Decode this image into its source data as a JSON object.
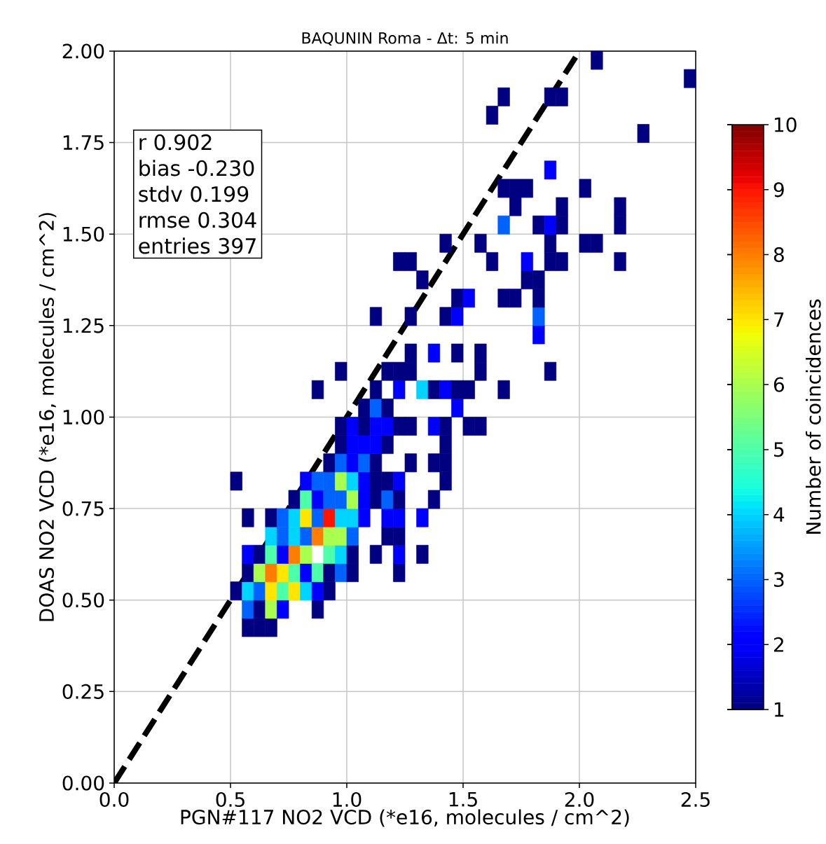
{
  "chart_data": {
    "type": "scatter",
    "title": "BAQUNIN Roma - Δt: 5 min",
    "xlabel": "PGN#117 NO2 VCD (*e16, molecules / cm^2)",
    "ylabel": "DOAS NO2 VCD (*e16, molecules / cm^2)",
    "clabel": "Number of coincidences",
    "annotations": [
      "r 0.902",
      "bias -0.230",
      "stdv 0.199",
      "rmse 0.304",
      "entries 397"
    ],
    "xlim": [
      0,
      2.5
    ],
    "ylim": [
      0,
      2
    ],
    "xticks": [
      {
        "value": 0,
        "label": "0.0"
      },
      0.5,
      {
        "value": 1,
        "label": "1.0"
      },
      1.5,
      {
        "value": 2,
        "label": "2.0"
      },
      2.5
    ],
    "yticks": [
      {
        "value": 0,
        "label": "0.00"
      },
      0.25,
      {
        "value": 0.5,
        "label": "0.50"
      },
      0.75,
      {
        "value": 1,
        "label": "1.00"
      },
      1.25,
      {
        "value": 1.5,
        "label": "1.50"
      },
      1.75,
      {
        "value": 2,
        "label": "2.00"
      }
    ],
    "clim": [
      1,
      10
    ],
    "cticks": [
      1,
      2,
      3,
      4,
      5,
      6,
      7,
      8,
      9,
      10
    ],
    "grid": true,
    "marker": "square",
    "x": [
      0.575,
      0.625,
      0.675,
      0.575,
      0.625,
      0.675,
      0.725,
      0.875,
      0.525,
      0.575,
      0.625,
      0.675,
      0.725,
      0.775,
      0.825,
      0.875,
      0.925,
      0.575,
      0.625,
      0.675,
      0.725,
      0.775,
      0.825,
      0.875,
      0.925,
      0.975,
      1.025,
      1.225,
      0.575,
      0.625,
      0.675,
      0.725,
      0.775,
      0.825,
      0.925,
      0.975,
      1.025,
      1.125,
      1.225,
      1.325,
      0.675,
      0.725,
      0.775,
      0.825,
      0.875,
      0.925,
      0.975,
      1.025,
      1.175,
      1.225,
      0.575,
      0.675,
      0.725,
      0.775,
      0.825,
      0.875,
      0.925,
      0.975,
      1.025,
      1.075,
      1.175,
      1.225,
      1.325,
      0.775,
      0.825,
      0.875,
      0.925,
      0.975,
      1.025,
      1.075,
      1.125,
      1.175,
      1.225,
      1.375,
      0.525,
      0.825,
      0.875,
      0.925,
      0.975,
      1.025,
      1.075,
      1.125,
      1.175,
      1.225,
      1.425,
      0.925,
      0.975,
      1.025,
      1.075,
      1.125,
      1.275,
      1.375,
      1.425,
      0.975,
      1.025,
      1.075,
      1.125,
      1.175,
      1.425,
      0.975,
      1.025,
      1.075,
      1.125,
      1.175,
      1.225,
      1.275,
      1.375,
      1.425,
      1.525,
      1.575,
      1.075,
      1.125,
      1.175,
      1.475,
      0.875,
      1.125,
      1.225,
      1.325,
      1.375,
      1.425,
      1.475,
      1.525,
      1.675,
      0.975,
      1.175,
      1.225,
      1.275,
      1.575,
      1.875,
      1.275,
      1.375,
      1.475,
      1.575,
      1.825,
      1.125,
      1.275,
      1.425,
      1.475,
      1.825,
      1.475,
      1.525,
      1.675,
      1.725,
      1.825,
      1.325,
      1.775,
      1.825,
      1.225,
      1.275,
      1.625,
      1.775,
      1.875,
      1.925,
      2.175,
      1.425,
      1.575,
      1.875,
      2.025,
      2.075,
      1.675,
      1.825,
      1.875,
      1.925,
      2.175,
      1.725,
      1.925,
      2.175,
      1.675,
      1.725,
      1.775,
      2.025,
      1.875,
      2.275,
      1.625,
      1.675,
      1.875,
      1.925,
      2.475,
      2.075
    ],
    "values": [
      0.425,
      0.425,
      0.425,
      0.475,
      0.475,
      0.475,
      0.475,
      0.475,
      0.525,
      0.525,
      0.525,
      0.525,
      0.525,
      0.525,
      0.525,
      0.525,
      0.525,
      0.575,
      0.575,
      0.575,
      0.575,
      0.575,
      0.575,
      0.575,
      0.575,
      0.575,
      0.575,
      0.575,
      0.625,
      0.625,
      0.625,
      0.625,
      0.625,
      0.625,
      0.625,
      0.625,
      0.625,
      0.625,
      0.625,
      0.625,
      0.675,
      0.675,
      0.675,
      0.675,
      0.675,
      0.675,
      0.675,
      0.675,
      0.675,
      0.675,
      0.725,
      0.725,
      0.725,
      0.725,
      0.725,
      0.725,
      0.725,
      0.725,
      0.725,
      0.725,
      0.725,
      0.725,
      0.725,
      0.775,
      0.775,
      0.775,
      0.775,
      0.775,
      0.775,
      0.775,
      0.775,
      0.775,
      0.775,
      0.775,
      0.825,
      0.825,
      0.825,
      0.825,
      0.825,
      0.825,
      0.825,
      0.825,
      0.825,
      0.825,
      0.825,
      0.875,
      0.875,
      0.875,
      0.875,
      0.875,
      0.875,
      0.875,
      0.875,
      0.925,
      0.925,
      0.925,
      0.925,
      0.925,
      0.925,
      0.975,
      0.975,
      0.975,
      0.975,
      0.975,
      0.975,
      0.975,
      0.975,
      0.975,
      0.975,
      0.975,
      1.025,
      1.025,
      1.025,
      1.025,
      1.075,
      1.075,
      1.075,
      1.075,
      1.075,
      1.075,
      1.075,
      1.075,
      1.075,
      1.125,
      1.125,
      1.125,
      1.125,
      1.125,
      1.125,
      1.175,
      1.175,
      1.175,
      1.175,
      1.225,
      1.275,
      1.275,
      1.275,
      1.275,
      1.275,
      1.325,
      1.325,
      1.325,
      1.325,
      1.325,
      1.375,
      1.375,
      1.375,
      1.425,
      1.425,
      1.425,
      1.425,
      1.425,
      1.425,
      1.425,
      1.475,
      1.475,
      1.475,
      1.475,
      1.475,
      1.525,
      1.525,
      1.525,
      1.525,
      1.525,
      1.575,
      1.575,
      1.575,
      1.625,
      1.625,
      1.625,
      1.625,
      1.675,
      1.775,
      1.825,
      1.875,
      1.875,
      1.875,
      1.925,
      1.975
    ],
    "cvalues": [
      1,
      1,
      1,
      3,
      1,
      6,
      2,
      1,
      1,
      4,
      3,
      7,
      5,
      7,
      4,
      2,
      1,
      1,
      6,
      8,
      7,
      5,
      2,
      5,
      1,
      3,
      1,
      1,
      2,
      1,
      5,
      2,
      8,
      6,
      5,
      4,
      1,
      1,
      2,
      1,
      4,
      3,
      4,
      3,
      8,
      6,
      6,
      3,
      1,
      1,
      1,
      1,
      3,
      4,
      7,
      3,
      9,
      4,
      4,
      2,
      2,
      2,
      2,
      1,
      5,
      2,
      3,
      3,
      6,
      2,
      1,
      3,
      1,
      1,
      1,
      2,
      3,
      3,
      6,
      4,
      2,
      1,
      1,
      2,
      1,
      1,
      3,
      2,
      3,
      1,
      1,
      1,
      1,
      1,
      2,
      2,
      2,
      1,
      1,
      1,
      2,
      1,
      2,
      2,
      1,
      1,
      2,
      1,
      1,
      1,
      1,
      3,
      1,
      2,
      1,
      1,
      2,
      4,
      1,
      2,
      1,
      1,
      1,
      1,
      1,
      1,
      1,
      1,
      1,
      1,
      2,
      1,
      1,
      2,
      1,
      1,
      1,
      2,
      3,
      1,
      2,
      1,
      1,
      1,
      1,
      1,
      1,
      1,
      1,
      1,
      2,
      1,
      1,
      1,
      1,
      1,
      1,
      1,
      1,
      3,
      1,
      2,
      1,
      1,
      1,
      1,
      1,
      1,
      1,
      1,
      1,
      2,
      1,
      1,
      1,
      1,
      1,
      1,
      1
    ],
    "colors": [
      "#000080",
      "#000080",
      "#000080",
      "#0063ff",
      "#000080",
      "#a9ff4e",
      "#0000ff",
      "#000080",
      "#000080",
      "#00d4ff",
      "#0063ff",
      "#ffe600",
      "#4effa9",
      "#ffe600",
      "#00d4ff",
      "#0000ff",
      "#000080",
      "#000080",
      "#a9ff4e",
      "#ff7d00",
      "#ffe600",
      "#4effa9",
      "#0000ff",
      "#4effa9",
      "#000080",
      "#0063ff",
      "#000080",
      "#000080",
      "#0000ff",
      "#000080",
      "#4effa9",
      "#0000ff",
      "#ff7d00",
      "#a9ff4e",
      "#4effa9",
      "#00d4ff",
      "#000080",
      "#000080",
      "#0000ff",
      "#000080",
      "#00d4ff",
      "#0063ff",
      "#00d4ff",
      "#0063ff",
      "#ff7d00",
      "#a9ff4e",
      "#a9ff4e",
      "#0063ff",
      "#000080",
      "#000080",
      "#000080",
      "#000080",
      "#0063ff",
      "#00d4ff",
      "#ffe600",
      "#0063ff",
      "#ff1400",
      "#00d4ff",
      "#00d4ff",
      "#0000ff",
      "#0000ff",
      "#0000ff",
      "#0000ff",
      "#000080",
      "#4effa9",
      "#0000ff",
      "#0063ff",
      "#0063ff",
      "#a9ff4e",
      "#0000ff",
      "#000080",
      "#0063ff",
      "#000080",
      "#000080",
      "#000080",
      "#0000ff",
      "#0063ff",
      "#0063ff",
      "#a9ff4e",
      "#00d4ff",
      "#0000ff",
      "#000080",
      "#000080",
      "#0000ff",
      "#000080",
      "#000080",
      "#0063ff",
      "#0000ff",
      "#0063ff",
      "#000080",
      "#000080",
      "#000080",
      "#000080",
      "#000080",
      "#0000ff",
      "#0000ff",
      "#0000ff",
      "#000080",
      "#000080",
      "#000080",
      "#0000ff",
      "#000080",
      "#0000ff",
      "#0000ff",
      "#000080",
      "#000080",
      "#0000ff",
      "#000080",
      "#000080",
      "#000080",
      "#000080",
      "#0063ff",
      "#000080",
      "#0000ff",
      "#000080",
      "#000080",
      "#0000ff",
      "#00d4ff",
      "#000080",
      "#0000ff",
      "#000080",
      "#000080",
      "#000080",
      "#000080",
      "#000080",
      "#000080",
      "#000080",
      "#000080",
      "#000080",
      "#000080",
      "#0000ff",
      "#000080",
      "#000080",
      "#0000ff",
      "#000080",
      "#000080",
      "#000080",
      "#0000ff",
      "#0063ff",
      "#000080",
      "#0000ff",
      "#000080",
      "#000080",
      "#000080",
      "#000080",
      "#000080",
      "#000080",
      "#000080",
      "#000080",
      "#000080",
      "#0000ff",
      "#000080",
      "#000080",
      "#000080",
      "#000080",
      "#000080",
      "#000080",
      "#000080",
      "#000080",
      "#0063ff",
      "#000080",
      "#0000ff",
      "#000080",
      "#000080",
      "#000080",
      "#000080",
      "#000080",
      "#000080",
      "#000080",
      "#000080",
      "#000080",
      "#0000ff",
      "#000080",
      "#000080",
      "#000080",
      "#000080",
      "#000080",
      "#000080",
      "#000080"
    ],
    "series": [
      {
        "type": "line",
        "x": [
          0,
          2
        ],
        "values": [
          0,
          2
        ],
        "color": "#000000",
        "line_style": "dashed",
        "marker": "none"
      }
    ]
  }
}
